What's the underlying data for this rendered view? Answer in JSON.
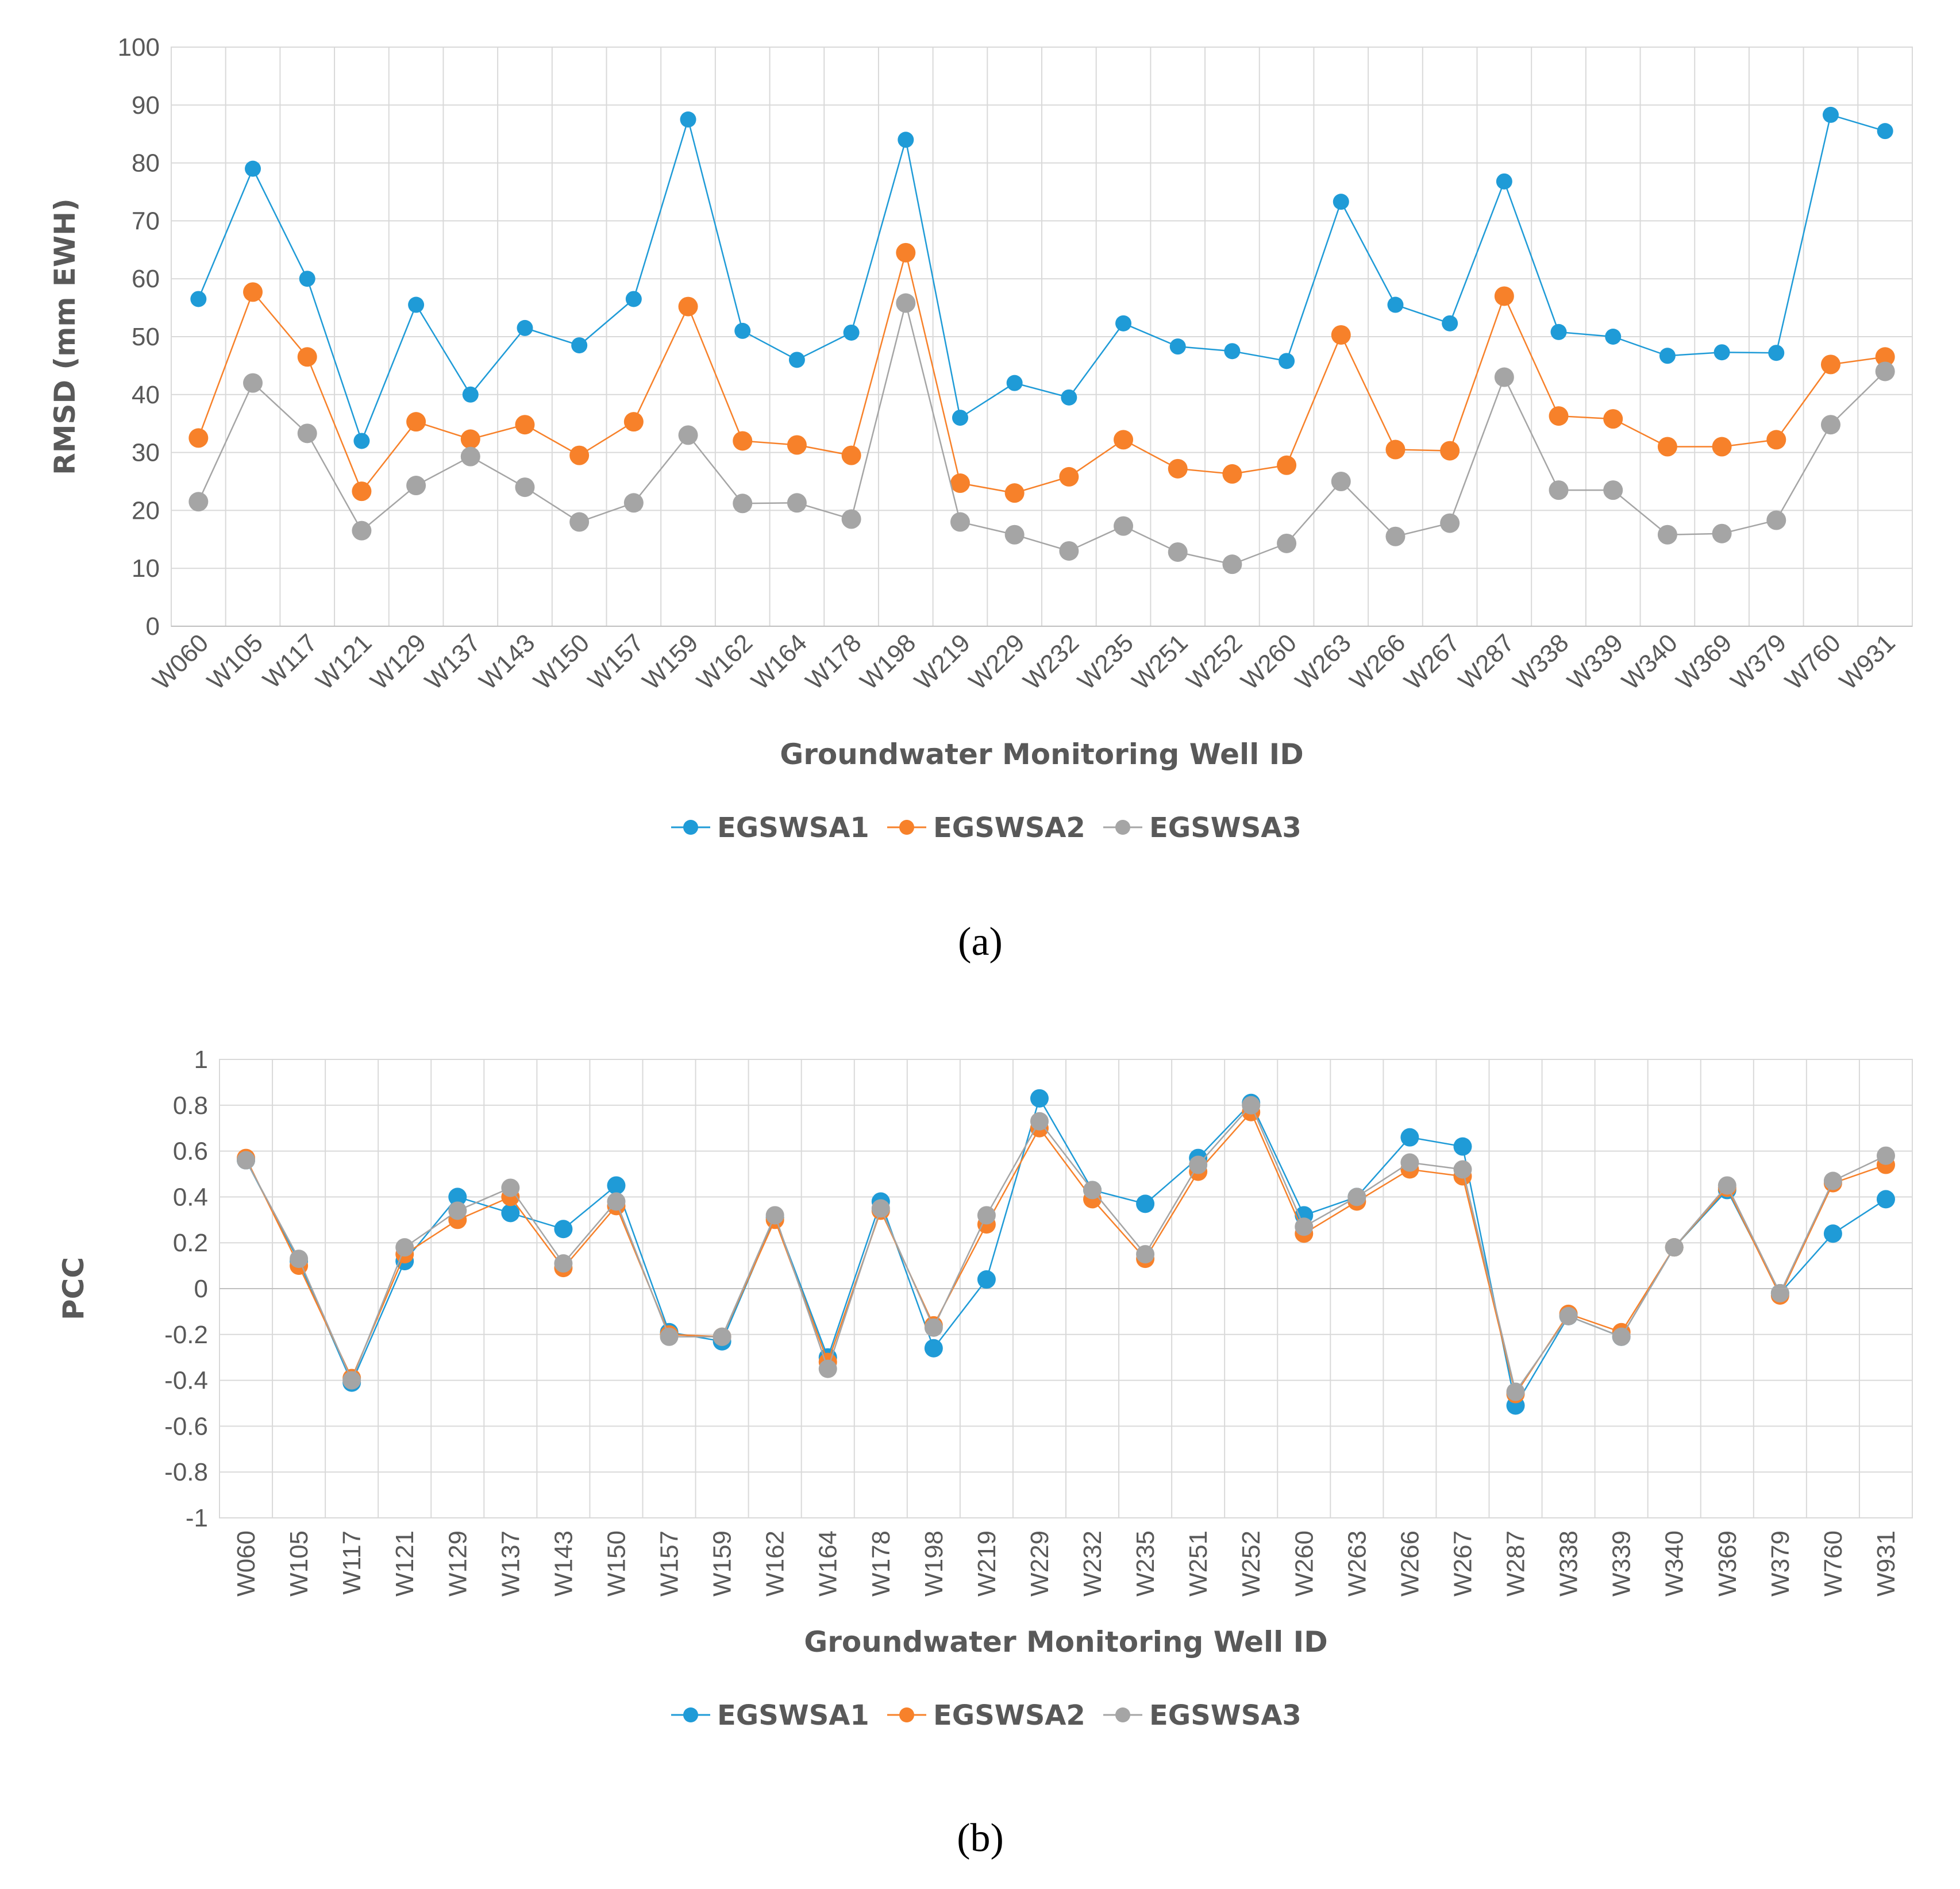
{
  "chart_data": [
    {
      "type": "line",
      "panel": "(a)",
      "xlabel": "Groundwater Monitoring Well ID",
      "ylabel": "RMSD (mm EWH)",
      "ylim": [
        0,
        100
      ],
      "yticks": [
        0,
        10,
        20,
        30,
        40,
        50,
        60,
        70,
        80,
        90,
        100
      ],
      "ytick_labels": [
        "0",
        "10",
        "20",
        "30",
        "40",
        "50",
        "60",
        "70",
        "80",
        "90",
        "100"
      ],
      "grid": true,
      "legend": "bottom",
      "categories": [
        "W060",
        "W105",
        "W117",
        "W121",
        "W129",
        "W137",
        "W143",
        "W150",
        "W157",
        "W159",
        "W162",
        "W164",
        "W178",
        "W198",
        "W219",
        "W229",
        "W232",
        "W235",
        "W251",
        "W252",
        "W260",
        "W263",
        "W266",
        "W267",
        "W287",
        "W338",
        "W339",
        "W340",
        "W369",
        "W379",
        "W760",
        "W931"
      ],
      "series": [
        {
          "name": "EGSWSA1",
          "color": "#1f9bd7",
          "values": [
            56.5,
            79,
            60,
            32,
            55.5,
            40,
            51.5,
            48.5,
            56.5,
            87.5,
            51,
            46,
            50.7,
            84,
            36,
            42,
            39.5,
            52.3,
            48.3,
            47.5,
            45.8,
            73.3,
            55.5,
            52.3,
            76.8,
            50.8,
            50,
            46.7,
            47.3,
            47.2,
            88.3,
            85.5
          ]
        },
        {
          "name": "EGSWSA2",
          "color": "#f7812a",
          "values": [
            32.5,
            57.7,
            46.5,
            23.3,
            35.3,
            32.3,
            34.8,
            29.5,
            35.3,
            55.2,
            32,
            31.3,
            29.5,
            64.5,
            24.7,
            23,
            25.8,
            32.2,
            27.2,
            26.3,
            27.8,
            50.3,
            30.5,
            30.3,
            57,
            36.3,
            35.8,
            31,
            31,
            32.2,
            45.2,
            46.5
          ]
        },
        {
          "name": "EGSWSA3",
          "color": "#a5a5a5",
          "values": [
            21.5,
            42,
            33.3,
            16.5,
            24.3,
            29.3,
            24,
            18,
            21.3,
            33,
            21.2,
            21.3,
            18.5,
            55.8,
            18,
            15.8,
            13,
            17.3,
            12.8,
            10.7,
            14.3,
            25,
            15.5,
            17.8,
            43,
            23.5,
            23.5,
            15.8,
            16,
            18.3,
            34.8,
            44
          ]
        }
      ]
    },
    {
      "type": "line",
      "panel": "(b)",
      "xlabel": "Groundwater Monitoring Well ID",
      "ylabel": "PCC",
      "ylim": [
        -1,
        1
      ],
      "yticks": [
        -1,
        -0.8,
        -0.6,
        -0.4,
        -0.2,
        0,
        0.2,
        0.4,
        0.6,
        0.8,
        1
      ],
      "ytick_labels": [
        "-1",
        "-0.8",
        "-0.6",
        "-0.4",
        "-0.2",
        "0",
        "0.2",
        "0.4",
        "0.6",
        "0.8",
        "1"
      ],
      "grid": true,
      "legend": "bottom",
      "categories": [
        "W060",
        "W105",
        "W117",
        "W121",
        "W129",
        "W137",
        "W143",
        "W150",
        "W157",
        "W159",
        "W162",
        "W164",
        "W178",
        "W198",
        "W219",
        "W229",
        "W232",
        "W235",
        "W251",
        "W252",
        "W260",
        "W263",
        "W266",
        "W267",
        "W287",
        "W338",
        "W339",
        "W340",
        "W369",
        "W379",
        "W760",
        "W931"
      ],
      "series": [
        {
          "name": "EGSWSA1",
          "color": "#1f9bd7",
          "values": [
            0.56,
            0.12,
            -0.41,
            0.12,
            0.4,
            0.33,
            0.26,
            0.45,
            -0.19,
            -0.23,
            0.31,
            -0.3,
            0.38,
            -0.26,
            0.04,
            0.83,
            0.43,
            0.37,
            0.57,
            0.81,
            0.32,
            0.4,
            0.66,
            0.62,
            -0.51,
            -0.12,
            -0.21,
            0.18,
            0.43,
            -0.02,
            0.24,
            0.39
          ]
        },
        {
          "name": "EGSWSA2",
          "color": "#f7812a",
          "values": [
            0.57,
            0.1,
            -0.39,
            0.15,
            0.3,
            0.4,
            0.09,
            0.36,
            -0.2,
            -0.21,
            0.3,
            -0.32,
            0.34,
            -0.16,
            0.28,
            0.7,
            0.39,
            0.13,
            0.51,
            0.77,
            0.24,
            0.38,
            0.52,
            0.49,
            -0.46,
            -0.11,
            -0.19,
            0.18,
            0.44,
            -0.03,
            0.46,
            0.54
          ]
        },
        {
          "name": "EGSWSA3",
          "color": "#a5a5a5",
          "values": [
            0.56,
            0.13,
            -0.4,
            0.18,
            0.34,
            0.44,
            0.11,
            0.38,
            -0.21,
            -0.21,
            0.32,
            -0.35,
            0.35,
            -0.17,
            0.32,
            0.73,
            0.43,
            0.15,
            0.54,
            0.8,
            0.27,
            0.4,
            0.55,
            0.52,
            -0.45,
            -0.12,
            -0.21,
            0.18,
            0.45,
            -0.02,
            0.47,
            0.58
          ]
        }
      ]
    }
  ]
}
